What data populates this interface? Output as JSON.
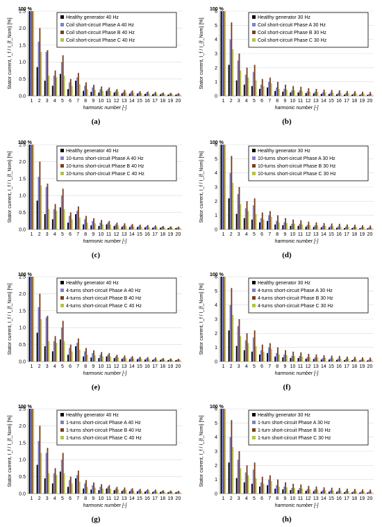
{
  "harmonics": [
    "1",
    "2",
    "3",
    "4",
    "5",
    "6",
    "7",
    "8",
    "9",
    "10",
    "11",
    "12",
    "13",
    "14",
    "15",
    "16",
    "17",
    "18",
    "19",
    "20"
  ],
  "colors": [
    "#000000",
    "#7f7fcf",
    "#7b3f1f",
    "#b6c24a"
  ],
  "chart_data": [
    {
      "type": "bar",
      "caption": "(a)",
      "topLabel": "100 %",
      "ylabel": "Stator current, I_f / I_{f_Nom} [%]",
      "xlabel": "harmonic number [-]",
      "ylim": [
        0,
        2.5
      ],
      "yticks": [
        "0.0",
        "0.5",
        "1.0",
        "1.5",
        "2.0",
        "2.5"
      ],
      "legend": "top-right",
      "series": [
        {
          "name": "Healthy generator 40 Hz",
          "values": [
            2.5,
            0.85,
            0.45,
            0.3,
            0.65,
            0.2,
            0.45,
            0.15,
            0.12,
            0.1,
            0.15,
            0.1,
            0.08,
            0.07,
            0.07,
            0.06,
            0.05,
            0.05,
            0.04,
            0.04
          ]
        },
        {
          "name": "Coil short-circuit Phase A 40 Hz",
          "values": [
            2.5,
            1.6,
            1.3,
            0.6,
            1.0,
            0.4,
            0.55,
            0.3,
            0.25,
            0.2,
            0.2,
            0.15,
            0.12,
            0.12,
            0.1,
            0.1,
            0.08,
            0.08,
            0.07,
            0.06
          ]
        },
        {
          "name": "Coil short-circuit Phase B 40 Hz",
          "values": [
            2.5,
            2.0,
            1.35,
            0.75,
            1.2,
            0.5,
            0.68,
            0.4,
            0.33,
            0.28,
            0.25,
            0.2,
            0.18,
            0.16,
            0.14,
            0.13,
            0.12,
            0.1,
            0.09,
            0.08
          ]
        },
        {
          "name": "Coil short-circuit Phase C 40 Hz",
          "values": [
            2.5,
            1.3,
            0.6,
            0.55,
            0.6,
            0.3,
            0.35,
            0.2,
            0.18,
            0.15,
            0.14,
            0.12,
            0.1,
            0.09,
            0.08,
            0.07,
            0.07,
            0.06,
            0.05,
            0.05
          ]
        }
      ]
    },
    {
      "type": "bar",
      "caption": "(b)",
      "topLabel": "100 %",
      "ylabel": "Stator current, I_f / I_{f_Nom} [%]",
      "xlabel": "harmonic number [-]",
      "ylim": [
        0,
        6
      ],
      "yticks": [
        "0",
        "1",
        "2",
        "3",
        "4",
        "5",
        "6"
      ],
      "legend": "top-right",
      "series": [
        {
          "name": "Healthy generator 30 Hz",
          "values": [
            6,
            2.2,
            1.1,
            0.8,
            0.7,
            0.5,
            0.6,
            0.35,
            0.3,
            0.25,
            0.25,
            0.2,
            0.18,
            0.15,
            0.14,
            0.12,
            0.1,
            0.1,
            0.08,
            0.08
          ]
        },
        {
          "name": "Coil short-circuit Phase A 30 Hz",
          "values": [
            6,
            4.0,
            2.5,
            1.5,
            1.7,
            0.8,
            1.0,
            0.6,
            0.5,
            0.4,
            0.4,
            0.32,
            0.3,
            0.26,
            0.24,
            0.22,
            0.2,
            0.18,
            0.16,
            0.15
          ]
        },
        {
          "name": "Coil short-circuit Phase B 30 Hz",
          "values": [
            6,
            5.2,
            3.0,
            2.0,
            2.2,
            1.2,
            1.3,
            1.0,
            0.8,
            0.7,
            0.65,
            0.55,
            0.5,
            0.45,
            0.42,
            0.4,
            0.35,
            0.33,
            0.3,
            0.28
          ]
        },
        {
          "name": "Coil short-circuit Phase C 30 Hz",
          "values": [
            6,
            3.3,
            1.8,
            1.3,
            1.1,
            0.7,
            0.9,
            0.5,
            0.45,
            0.4,
            0.35,
            0.3,
            0.28,
            0.25,
            0.22,
            0.2,
            0.18,
            0.17,
            0.15,
            0.14
          ]
        }
      ]
    },
    {
      "type": "bar",
      "caption": "(c)",
      "topLabel": "100 %",
      "ylabel": "Stator current, I_f / I_{f_Nom} [%]",
      "xlabel": "harmonic number [-]",
      "ylim": [
        0,
        2.5
      ],
      "yticks": [
        "0.0",
        "0.5",
        "1.0",
        "1.5",
        "2.0",
        "2.5"
      ],
      "legend": "top-right",
      "series": [
        {
          "name": "Healthy generator 40 Hz",
          "values": [
            2.5,
            0.85,
            0.45,
            0.3,
            0.65,
            0.2,
            0.45,
            0.15,
            0.12,
            0.1,
            0.15,
            0.1,
            0.08,
            0.07,
            0.07,
            0.06,
            0.05,
            0.05,
            0.04,
            0.04
          ]
        },
        {
          "name": "10-turns short-circuit Phase A 40 Hz",
          "values": [
            2.5,
            1.55,
            1.25,
            0.6,
            1.0,
            0.4,
            0.55,
            0.3,
            0.25,
            0.2,
            0.2,
            0.15,
            0.12,
            0.12,
            0.1,
            0.1,
            0.08,
            0.08,
            0.07,
            0.06
          ]
        },
        {
          "name": "10-turns short-circuit Phase B 40 Hz",
          "values": [
            2.5,
            2.0,
            1.35,
            0.75,
            1.2,
            0.5,
            0.68,
            0.4,
            0.33,
            0.28,
            0.25,
            0.2,
            0.18,
            0.16,
            0.14,
            0.13,
            0.12,
            0.1,
            0.09,
            0.08
          ]
        },
        {
          "name": "10-turns short-circuit Phase C 40 Hz",
          "values": [
            2.5,
            1.3,
            0.6,
            0.55,
            0.6,
            0.3,
            0.35,
            0.2,
            0.18,
            0.15,
            0.14,
            0.12,
            0.1,
            0.09,
            0.08,
            0.07,
            0.07,
            0.06,
            0.05,
            0.05
          ]
        }
      ]
    },
    {
      "type": "bar",
      "caption": "(d)",
      "topLabel": "100 %",
      "ylabel": "Stator current, I_f / I_{f_Nom} [%]",
      "xlabel": "harmonic number [-]",
      "ylim": [
        0,
        6
      ],
      "yticks": [
        "0",
        "1",
        "2",
        "3",
        "4",
        "5",
        "6"
      ],
      "legend": "top-right",
      "series": [
        {
          "name": "Healthy generator 30 Hz",
          "values": [
            6,
            2.2,
            1.1,
            0.8,
            0.7,
            0.5,
            0.6,
            0.35,
            0.3,
            0.25,
            0.25,
            0.2,
            0.18,
            0.15,
            0.14,
            0.12,
            0.1,
            0.1,
            0.08,
            0.08
          ]
        },
        {
          "name": "10-turns short-circuit Phase A 30 Hz",
          "values": [
            6,
            4.0,
            2.5,
            1.5,
            1.7,
            0.8,
            1.0,
            0.6,
            0.5,
            0.4,
            0.4,
            0.32,
            0.3,
            0.26,
            0.24,
            0.22,
            0.2,
            0.18,
            0.16,
            0.15
          ]
        },
        {
          "name": "10-turns short-circuit Phase B 30 Hz",
          "values": [
            6,
            5.2,
            3.0,
            2.0,
            2.2,
            1.2,
            1.3,
            1.0,
            0.8,
            0.7,
            0.65,
            0.55,
            0.5,
            0.45,
            0.42,
            0.4,
            0.35,
            0.33,
            0.3,
            0.28
          ]
        },
        {
          "name": "10-turns short-circuit Phase C 30 Hz",
          "values": [
            6,
            3.3,
            1.8,
            1.3,
            1.1,
            0.7,
            0.9,
            0.5,
            0.45,
            0.4,
            0.35,
            0.3,
            0.28,
            0.25,
            0.22,
            0.2,
            0.18,
            0.17,
            0.15,
            0.14
          ]
        }
      ]
    },
    {
      "type": "bar",
      "caption": "(e)",
      "topLabel": "100 %",
      "ylabel": "Stator current, I_f / I_{f_Nom} [%]",
      "xlabel": "harmonic number [-]",
      "ylim": [
        0,
        2.5
      ],
      "yticks": [
        "0.0",
        "0.5",
        "1.0",
        "1.5",
        "2.0",
        "2.5"
      ],
      "legend": "top-right",
      "series": [
        {
          "name": "Healthy generator 40 Hz",
          "values": [
            2.5,
            0.85,
            0.45,
            0.3,
            0.65,
            0.2,
            0.45,
            0.15,
            0.12,
            0.1,
            0.15,
            0.1,
            0.08,
            0.07,
            0.07,
            0.06,
            0.05,
            0.05,
            0.04,
            0.04
          ]
        },
        {
          "name": "4-turns short-circuit Phase A 40 Hz",
          "values": [
            2.5,
            1.6,
            1.3,
            0.6,
            1.0,
            0.4,
            0.55,
            0.3,
            0.25,
            0.2,
            0.2,
            0.15,
            0.12,
            0.12,
            0.1,
            0.1,
            0.08,
            0.08,
            0.07,
            0.06
          ]
        },
        {
          "name": "4-turns short-circuit Phase B 40 Hz",
          "values": [
            2.5,
            2.0,
            1.35,
            0.75,
            1.2,
            0.5,
            0.68,
            0.4,
            0.33,
            0.28,
            0.25,
            0.2,
            0.18,
            0.16,
            0.14,
            0.13,
            0.12,
            0.1,
            0.09,
            0.08
          ]
        },
        {
          "name": "4-turns short-circuit Phase C 40 Hz",
          "values": [
            2.5,
            1.25,
            0.6,
            0.55,
            0.6,
            0.3,
            0.35,
            0.2,
            0.18,
            0.15,
            0.14,
            0.12,
            0.1,
            0.09,
            0.08,
            0.07,
            0.07,
            0.06,
            0.05,
            0.05
          ]
        }
      ]
    },
    {
      "type": "bar",
      "caption": "(f)",
      "topLabel": "100 %",
      "ylabel": "Stator current, I_f / I_{f_Nom} [%]",
      "xlabel": "harmonic number [-]",
      "ylim": [
        0,
        6
      ],
      "yticks": [
        "0",
        "1",
        "2",
        "3",
        "4",
        "5",
        "6"
      ],
      "legend": "top-right",
      "series": [
        {
          "name": "Healthy generator 30 Hz",
          "values": [
            6,
            2.2,
            1.1,
            0.8,
            0.7,
            0.5,
            0.6,
            0.35,
            0.3,
            0.25,
            0.25,
            0.2,
            0.18,
            0.15,
            0.14,
            0.12,
            0.1,
            0.1,
            0.08,
            0.08
          ]
        },
        {
          "name": "4-turns short-circuit Phase A 30 Hz",
          "values": [
            6,
            4.0,
            2.5,
            1.5,
            1.7,
            0.8,
            1.0,
            0.6,
            0.5,
            0.4,
            0.4,
            0.32,
            0.3,
            0.26,
            0.24,
            0.22,
            0.2,
            0.18,
            0.16,
            0.15
          ]
        },
        {
          "name": "4-turns short-circuit Phase B 30 Hz",
          "values": [
            6,
            5.2,
            3.0,
            2.0,
            2.2,
            1.2,
            1.3,
            1.0,
            0.8,
            0.7,
            0.65,
            0.55,
            0.5,
            0.45,
            0.42,
            0.4,
            0.35,
            0.33,
            0.3,
            0.28
          ]
        },
        {
          "name": "4-turns short-circuit Phase C 30 Hz",
          "values": [
            6,
            3.3,
            1.8,
            1.3,
            1.1,
            0.7,
            0.9,
            0.5,
            0.45,
            0.4,
            0.35,
            0.3,
            0.28,
            0.25,
            0.22,
            0.2,
            0.18,
            0.17,
            0.15,
            0.14
          ]
        }
      ]
    },
    {
      "type": "bar",
      "caption": "(g)",
      "topLabel": "100 %",
      "ylabel": "Stator current, I_f / I_{f_Nom} [%]",
      "xlabel": "harmonic number [-]",
      "ylim": [
        0,
        2.5
      ],
      "yticks": [
        "0.0",
        "0.5",
        "1.0",
        "1.5",
        "2.0",
        "2.5"
      ],
      "legend": "top-right",
      "series": [
        {
          "name": "Healthy generator 40 Hz",
          "values": [
            2.5,
            0.85,
            0.45,
            0.3,
            0.65,
            0.2,
            0.45,
            0.15,
            0.12,
            0.1,
            0.15,
            0.1,
            0.08,
            0.07,
            0.07,
            0.06,
            0.05,
            0.05,
            0.04,
            0.04
          ]
        },
        {
          "name": "1-turns short-circuit Phase A 40 Hz",
          "values": [
            2.5,
            1.55,
            1.2,
            0.6,
            1.0,
            0.4,
            0.55,
            0.3,
            0.25,
            0.2,
            0.2,
            0.15,
            0.12,
            0.12,
            0.1,
            0.1,
            0.08,
            0.08,
            0.07,
            0.06
          ]
        },
        {
          "name": "1-turns short-circuit Phase B 40 Hz",
          "values": [
            2.5,
            2.0,
            1.35,
            0.75,
            1.2,
            0.5,
            0.68,
            0.4,
            0.33,
            0.28,
            0.25,
            0.2,
            0.18,
            0.16,
            0.14,
            0.13,
            0.12,
            0.1,
            0.09,
            0.08
          ]
        },
        {
          "name": "1-turns short-circuit Phase C 40 Hz",
          "values": [
            2.5,
            1.2,
            0.6,
            0.55,
            0.6,
            0.3,
            0.35,
            0.2,
            0.18,
            0.15,
            0.14,
            0.12,
            0.1,
            0.09,
            0.08,
            0.07,
            0.07,
            0.06,
            0.05,
            0.05
          ]
        }
      ]
    },
    {
      "type": "bar",
      "caption": "(h)",
      "topLabel": "100 %",
      "ylabel": "Stator current, I_f / I_{f_Nom} [%]",
      "xlabel": "harmonic number [-]",
      "ylim": [
        0,
        6
      ],
      "yticks": [
        "0",
        "1",
        "2",
        "3",
        "4",
        "5",
        "6"
      ],
      "legend": "top-right",
      "series": [
        {
          "name": "Healthy generator 30 Hz",
          "values": [
            6,
            2.2,
            1.1,
            0.8,
            0.7,
            0.5,
            0.6,
            0.35,
            0.3,
            0.25,
            0.25,
            0.2,
            0.18,
            0.15,
            0.14,
            0.12,
            0.1,
            0.1,
            0.08,
            0.08
          ]
        },
        {
          "name": "1-turn short-circuit Phase A 30 Hz",
          "values": [
            6,
            4.0,
            2.4,
            1.5,
            1.7,
            0.8,
            1.0,
            0.6,
            0.5,
            0.4,
            0.4,
            0.32,
            0.3,
            0.26,
            0.24,
            0.22,
            0.2,
            0.18,
            0.16,
            0.15
          ]
        },
        {
          "name": "1-turn short-circuit Phase B 30 Hz",
          "values": [
            6,
            5.2,
            3.0,
            2.0,
            2.2,
            1.2,
            1.3,
            1.0,
            0.8,
            0.7,
            0.65,
            0.55,
            0.5,
            0.45,
            0.42,
            0.4,
            0.35,
            0.33,
            0.3,
            0.28
          ]
        },
        {
          "name": "1-turn short-circuit Phase C 30 Hz",
          "values": [
            6,
            3.3,
            1.8,
            1.3,
            1.1,
            0.7,
            0.9,
            0.5,
            0.45,
            0.4,
            0.35,
            0.3,
            0.28,
            0.25,
            0.22,
            0.2,
            0.18,
            0.17,
            0.15,
            0.14
          ]
        }
      ]
    }
  ]
}
